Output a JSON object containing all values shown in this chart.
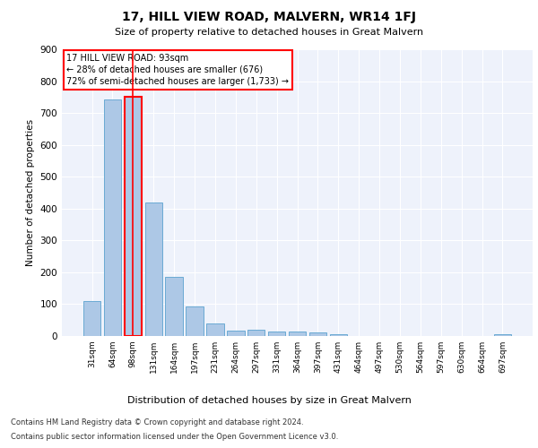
{
  "title": "17, HILL VIEW ROAD, MALVERN, WR14 1FJ",
  "subtitle": "Size of property relative to detached houses in Great Malvern",
  "xlabel": "Distribution of detached houses by size in Great Malvern",
  "ylabel": "Number of detached properties",
  "categories": [
    "31sqm",
    "64sqm",
    "98sqm",
    "131sqm",
    "164sqm",
    "197sqm",
    "231sqm",
    "264sqm",
    "297sqm",
    "331sqm",
    "364sqm",
    "397sqm",
    "431sqm",
    "464sqm",
    "497sqm",
    "530sqm",
    "564sqm",
    "597sqm",
    "630sqm",
    "664sqm",
    "697sqm"
  ],
  "values": [
    110,
    743,
    750,
    418,
    187,
    93,
    40,
    18,
    20,
    14,
    15,
    12,
    7,
    0,
    0,
    0,
    0,
    0,
    0,
    0,
    7
  ],
  "bar_color": "#adc8e6",
  "bar_edge_color": "#6aaad4",
  "background_color": "#eef2fb",
  "grid_color": "#ffffff",
  "annotation_text": "17 HILL VIEW ROAD: 93sqm\n← 28% of detached houses are smaller (676)\n72% of semi-detached houses are larger (1,733) →",
  "annotation_box_color": "white",
  "annotation_box_edge_color": "red",
  "property_bar_index": 2,
  "property_bar_edge_color": "red",
  "ylim": [
    0,
    900
  ],
  "yticks": [
    0,
    100,
    200,
    300,
    400,
    500,
    600,
    700,
    800,
    900
  ],
  "footer_line1": "Contains HM Land Registry data © Crown copyright and database right 2024.",
  "footer_line2": "Contains public sector information licensed under the Open Government Licence v3.0."
}
